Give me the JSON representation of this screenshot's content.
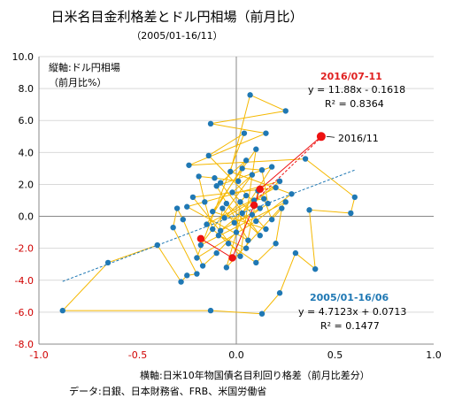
{
  "chart_data": {
    "type": "scatter",
    "title": "日米名目金利格差とドル円相場（前月比）",
    "subtitle": "（2005/01-16/11）",
    "ylabel_line1": "縦軸:ドル円相場",
    "ylabel_line2": "（前月比%）",
    "xlabel": "横軸:日米10年物国債名目利回り格差（前月比差分）",
    "source": "データ:日銀、日本財務省、FRB、米国労働省",
    "xlim": [
      -1.0,
      1.0
    ],
    "ylim": [
      -8.0,
      10.0
    ],
    "x_ticks": [
      "-1.0",
      "-0.5",
      "0.0",
      "0.5",
      "1.0"
    ],
    "x_tick_values": [
      -1.0,
      -0.5,
      0.0,
      0.5,
      1.0
    ],
    "y_ticks": [
      "-8.0",
      "-6.0",
      "-4.0",
      "-2.0",
      "0.0",
      "2.0",
      "4.0",
      "6.0",
      "8.0",
      "10.0"
    ],
    "y_tick_values": [
      -8,
      -6,
      -4,
      -2,
      0,
      2,
      4,
      6,
      8,
      10
    ],
    "colors": {
      "points": "#1f78b4",
      "path": "#f5b800",
      "highlight": "#ee1111",
      "trend_blue": "#1f78b4",
      "trend_red": "#ee1111",
      "grid": "#d9d9d9"
    },
    "regression_recent": {
      "label": "2016/07-11",
      "equation": "y = 11.88x - 0.1618",
      "r2": "R² = 0.8364",
      "slope": 11.88,
      "intercept": -0.1618,
      "x_range": [
        0.07,
        0.43
      ]
    },
    "regression_full": {
      "label": "2005/01-16/06",
      "equation": "y = 4.7123x + 0.0713",
      "r2": "R² = 0.1477",
      "slope": 4.7123,
      "intercept": 0.0713,
      "x_range": [
        -0.88,
        0.6
      ]
    },
    "latest_label": "2016/11",
    "series": [
      {
        "values": [
          [
            -0.05,
            0.8
          ],
          [
            0.12,
            -1.2
          ],
          [
            -0.08,
            2.1
          ],
          [
            0.05,
            3.5
          ],
          [
            -0.15,
            -0.5
          ],
          [
            0.2,
            1.8
          ],
          [
            -0.22,
            1.2
          ],
          [
            0.02,
            -2.5
          ],
          [
            0.1,
            4.2
          ],
          [
            -0.12,
            0.3
          ],
          [
            0.15,
            -0.8
          ],
          [
            -0.02,
            1.5
          ],
          [
            0.08,
            2.6
          ],
          [
            -0.18,
            -1.8
          ],
          [
            0.25,
            0.9
          ],
          [
            -0.05,
            -3.2
          ],
          [
            0.03,
            0.2
          ],
          [
            0.18,
            3.1
          ],
          [
            -0.1,
            1.9
          ],
          [
            0.06,
            -1.5
          ],
          [
            -0.25,
            0.6
          ],
          [
            0.22,
            2.2
          ],
          [
            -0.08,
            -0.9
          ],
          [
            0.12,
            0.5
          ],
          [
            -0.14,
            3.8
          ],
          [
            0.04,
            5.2
          ],
          [
            -0.2,
            -2.6
          ],
          [
            0.1,
            -0.3
          ],
          [
            0.28,
            1.4
          ],
          [
            -0.03,
            2.8
          ],
          [
            0.07,
            7.6
          ],
          [
            0.25,
            6.6
          ],
          [
            -0.13,
            5.8
          ],
          [
            0.15,
            5.2
          ],
          [
            -0.24,
            3.2
          ],
          [
            0.35,
            3.6
          ],
          [
            0.6,
            1.2
          ],
          [
            0.58,
            0.2
          ],
          [
            0.37,
            0.4
          ],
          [
            0.4,
            -3.3
          ],
          [
            0.3,
            -2.3
          ],
          [
            0.22,
            -4.8
          ],
          [
            0.13,
            -6.1
          ],
          [
            -0.13,
            -5.9
          ],
          [
            -0.88,
            -5.9
          ],
          [
            -0.65,
            -2.9
          ],
          [
            -0.4,
            -1.8
          ],
          [
            -0.28,
            -4.1
          ],
          [
            -0.25,
            -3.7
          ],
          [
            -0.2,
            -3.6
          ],
          [
            -0.32,
            -0.7
          ],
          [
            -0.3,
            0.5
          ],
          [
            -0.27,
            -0.2
          ],
          [
            -0.17,
            -3.1
          ],
          [
            -0.1,
            -2.3
          ],
          [
            0.0,
            -1.0
          ],
          [
            0.02,
            0.9
          ],
          [
            0.05,
            1.3
          ],
          [
            -0.06,
            -0.1
          ],
          [
            0.09,
            1.0
          ],
          [
            0.14,
            1.1
          ],
          [
            0.18,
            -0.2
          ],
          [
            0.23,
            0.5
          ],
          [
            0.2,
            -1.7
          ],
          [
            0.1,
            -2.9
          ],
          [
            -0.04,
            -1.7
          ],
          [
            -0.12,
            -0.8
          ],
          [
            -0.16,
            0.9
          ],
          [
            -0.19,
            2.5
          ],
          [
            -0.11,
            2.4
          ],
          [
            0.01,
            2.2
          ],
          [
            0.03,
            3.0
          ],
          [
            0.13,
            2.9
          ],
          [
            0.16,
            0.8
          ],
          [
            0.08,
            0.1
          ],
          [
            -0.01,
            -0.4
          ],
          [
            -0.07,
            0.5
          ],
          [
            -0.09,
            -1.2
          ],
          [
            0.05,
            -2.0
          ],
          [
            0.11,
            1.6
          ]
        ]
      }
    ],
    "highlights": [
      [
        -0.18,
        -1.4
      ],
      [
        -0.02,
        -2.6
      ],
      [
        0.09,
        0.7
      ],
      [
        0.12,
        1.7
      ],
      [
        0.43,
        5.0
      ]
    ]
  }
}
